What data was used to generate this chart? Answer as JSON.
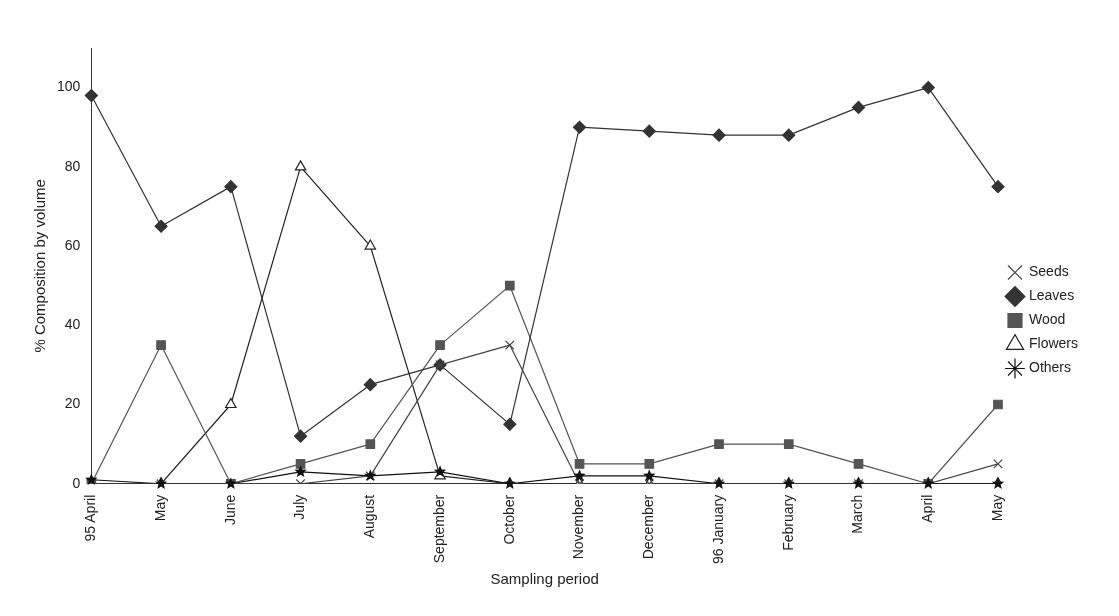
{
  "chart_data": {
    "type": "line",
    "xlabel": "Sampling period",
    "ylabel": "% Composition by volume",
    "categories": [
      "95 April",
      "May",
      "June",
      "July",
      "August",
      "September",
      "October",
      "November",
      "December",
      "96 January",
      "February",
      "March",
      "April",
      "May"
    ],
    "series": [
      {
        "name": "Leaves",
        "color": "#333333",
        "marker": "diamond",
        "values": [
          98,
          65,
          75,
          12,
          25,
          30,
          15,
          90,
          89,
          88,
          88,
          95,
          100,
          75
        ]
      },
      {
        "name": "Wood",
        "color": "#555555",
        "marker": "square",
        "values": [
          0,
          35,
          0,
          5,
          10,
          35,
          50,
          5,
          5,
          10,
          10,
          5,
          0,
          20
        ]
      },
      {
        "name": "Flowers",
        "color": "#222222",
        "marker": "triangle",
        "values": [
          0,
          0,
          20,
          80,
          60,
          2,
          0,
          0,
          0,
          0,
          0,
          0,
          0,
          0
        ]
      },
      {
        "name": "Seeds",
        "color": "#444444",
        "marker": "cross",
        "values": [
          0,
          0,
          0,
          0,
          2,
          30,
          35,
          0,
          0,
          0,
          0,
          0,
          0,
          5
        ]
      },
      {
        "name": "Others",
        "color": "#111111",
        "marker": "star",
        "values": [
          1,
          0,
          0,
          3,
          2,
          3,
          0,
          2,
          2,
          0,
          0,
          0,
          0,
          0
        ]
      }
    ],
    "ylim": [
      0,
      110
    ],
    "yticks": [
      0,
      20,
      40,
      60,
      80,
      100
    ],
    "grid": false,
    "legend": "right",
    "line_style": "solid"
  }
}
